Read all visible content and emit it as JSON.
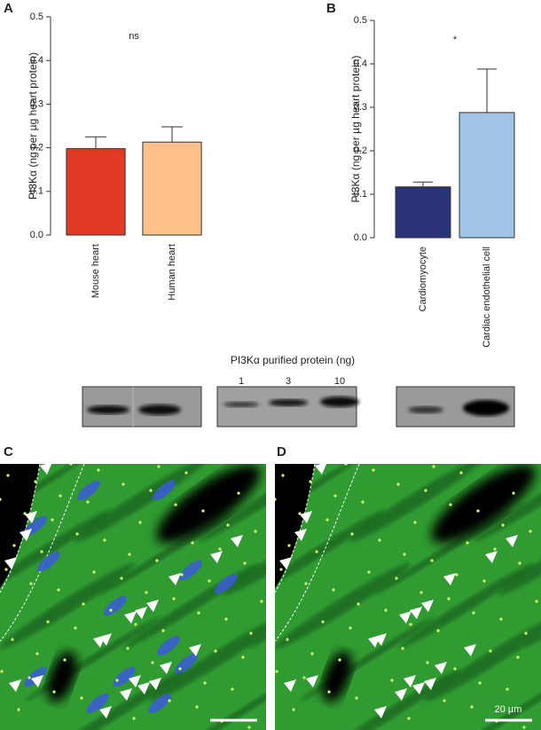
{
  "panel_labels": [
    "A",
    "B",
    "C",
    "D"
  ],
  "chart_data": [
    {
      "type": "bar",
      "ylabel": "PI3Kα (ng per µg heart protein)",
      "categories": [
        "Mouse heart",
        "Human heart"
      ],
      "values": [
        0.198,
        0.213
      ],
      "errors": [
        0.027,
        0.035
      ],
      "colors": [
        "#e13a24",
        "#fdc088"
      ],
      "ylim": [
        0,
        0.5
      ],
      "yticks": [
        {
          "value": 0,
          "label": "0.0"
        },
        0.1,
        0.2,
        0.3,
        0.4,
        0.5
      ],
      "annotation": "ns"
    },
    {
      "type": "bar",
      "ylabel": "PI3Kα (ng per µg heart protein)",
      "categories": [
        "Cardiomyocyte",
        "Cardiac endothelial cell"
      ],
      "values": [
        0.117,
        0.288
      ],
      "errors": [
        0.011,
        0.1
      ],
      "colors": [
        "#2a3278",
        "#a0c4e6"
      ],
      "ylim": [
        0,
        0.5
      ],
      "yticks": [
        {
          "value": 0,
          "label": "0.0"
        },
        0.1,
        0.2,
        0.3,
        0.4,
        0.5
      ],
      "annotation": "*"
    }
  ],
  "blot": {
    "title": "PI3Kα purified protein (ng)",
    "lanes": [
      "1",
      "3",
      "10"
    ]
  },
  "scale_bar": "20 µm"
}
